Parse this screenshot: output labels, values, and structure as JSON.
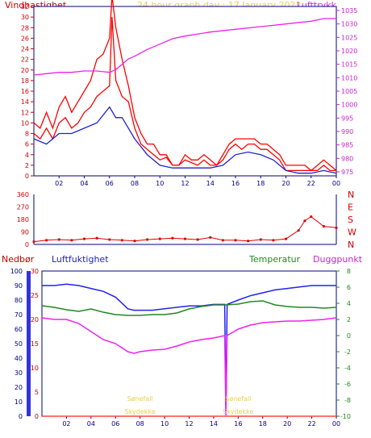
{
  "header": {
    "left_label": "Vindhastighet",
    "center_label": "24 hour graph day : 17 January 2022",
    "right_label": "Lufttrykk"
  },
  "mid_header": {
    "nedbor": "Nedbør",
    "luftfuktighet": "Luftfuktighet",
    "temperatur": "Temperatur",
    "duggpunkt": "Duggpunkt"
  },
  "chart_data": [
    {
      "type": "line",
      "panel": "wind_pressure",
      "x_ticks": [
        "02",
        "04",
        "06",
        "08",
        "10",
        "12",
        "14",
        "16",
        "18",
        "20",
        "22",
        "00"
      ],
      "x_range_hours": [
        0,
        24
      ],
      "y_left_ticks": [
        "0",
        "2",
        "4",
        "6",
        "8",
        "10",
        "12",
        "14",
        "16",
        "18",
        "20",
        "22",
        "24",
        "26",
        "28",
        "30",
        "32"
      ],
      "ylim_left": [
        0,
        32
      ],
      "y_right_ticks": [
        "975",
        "980",
        "985",
        "990",
        "995",
        "1000",
        "1005",
        "1010",
        "1015",
        "1020",
        "1025",
        "1030",
        "1035"
      ],
      "ylim_right": [
        973.5,
        1036.5
      ],
      "series": [
        {
          "name": "Vindhastighet",
          "axis": "left",
          "color": "#ff0000",
          "x": [
            0,
            0.5,
            1,
            1.5,
            2,
            2.5,
            3,
            3.5,
            4,
            4.5,
            5,
            5.5,
            6,
            6.2,
            6.5,
            7,
            7.5,
            8,
            8.5,
            9,
            9.5,
            10,
            10.5,
            11,
            11.5,
            12,
            12.5,
            13,
            13.5,
            14,
            14.5,
            15,
            15.5,
            16,
            16.5,
            17,
            17.5,
            18,
            18.5,
            19,
            19.5,
            20,
            20.5,
            21,
            21.5,
            22,
            22.5,
            23,
            23.5,
            24
          ],
          "values": [
            8,
            7,
            9,
            7,
            10,
            11,
            9,
            10,
            12,
            13,
            15,
            16,
            17,
            30,
            18,
            15,
            14,
            9,
            6,
            5,
            4,
            3,
            3.5,
            2,
            2,
            3,
            2.5,
            2,
            3,
            2,
            2,
            3,
            5,
            6,
            5,
            6,
            6,
            5,
            5,
            4,
            3,
            1,
            1,
            1,
            1,
            1,
            1,
            2,
            1,
            1
          ]
        },
        {
          "name": "Gust",
          "axis": "left",
          "color": "#ff0000",
          "x": [
            0,
            0.5,
            1,
            1.5,
            2,
            2.5,
            3,
            3.5,
            4,
            4.5,
            5,
            5.5,
            6,
            6.2,
            6.5,
            7,
            7.5,
            8,
            8.5,
            9,
            9.5,
            10,
            10.5,
            11,
            11.5,
            12,
            12.5,
            13,
            13.5,
            14,
            14.5,
            15,
            15.5,
            16,
            16.5,
            17,
            17.5,
            18,
            18.5,
            19,
            19.5,
            20,
            20.5,
            21,
            21.5,
            22,
            22.5,
            23,
            23.5,
            24
          ],
          "values": [
            10,
            9,
            12,
            9,
            13,
            15,
            12,
            14,
            16,
            18,
            22,
            23,
            26,
            34,
            28,
            22,
            17,
            11,
            8,
            6,
            6,
            4,
            4,
            2,
            2,
            4,
            3,
            3,
            4,
            3,
            2,
            4,
            6,
            7,
            7,
            7,
            7,
            6,
            6,
            5,
            4,
            2,
            2,
            2,
            2,
            1,
            2,
            3,
            2,
            1
          ]
        },
        {
          "name": "Middelvind",
          "axis": "left",
          "color": "#2020d0",
          "x": [
            0,
            1,
            2,
            3,
            4,
            5,
            6,
            6.5,
            7,
            7.5,
            8,
            9,
            10,
            11,
            12,
            13,
            14,
            15,
            16,
            17,
            18,
            19,
            20,
            21,
            22,
            23,
            24
          ],
          "values": [
            7,
            6,
            8,
            8,
            9,
            10,
            13,
            11,
            11,
            9,
            7,
            4,
            2,
            1.5,
            1.5,
            1.5,
            1.5,
            2,
            4,
            4.5,
            4,
            3,
            1,
            0.5,
            0.5,
            1,
            0.5
          ]
        },
        {
          "name": "Lufttrykk",
          "axis": "right",
          "color": "#ee22ee",
          "x": [
            0,
            1,
            2,
            3,
            4,
            5,
            6,
            6.5,
            7,
            7.5,
            8,
            9,
            10,
            11,
            12,
            14,
            16,
            18,
            20,
            22,
            23,
            24
          ],
          "values": [
            1011,
            1011.5,
            1012,
            1012,
            1012.5,
            1012.5,
            1012,
            1013,
            1015,
            1017,
            1018,
            1020.5,
            1022.5,
            1024.5,
            1025.5,
            1027,
            1028,
            1029,
            1030,
            1031,
            1032,
            1032
          ]
        }
      ]
    },
    {
      "type": "scatter",
      "panel": "wind_direction",
      "x_ticks": [
        "02",
        "04",
        "06",
        "08",
        "10",
        "12",
        "14",
        "16",
        "18",
        "20",
        "22",
        "00"
      ],
      "y_left_ticks": [
        "0",
        "90",
        "180",
        "270",
        "360"
      ],
      "y_right_ticks": [
        "N",
        "W",
        "S",
        "E",
        "N"
      ],
      "ylim": [
        0,
        360
      ],
      "series": [
        {
          "name": "Vindretning",
          "color": "#dd0000",
          "x": [
            0,
            1,
            2,
            3,
            4,
            5,
            6,
            7,
            8,
            9,
            10,
            11,
            12,
            13,
            14,
            15,
            16,
            17,
            18,
            19,
            20,
            21,
            21.5,
            22,
            23,
            24
          ],
          "values": [
            20,
            30,
            35,
            30,
            40,
            45,
            35,
            30,
            25,
            35,
            40,
            45,
            40,
            35,
            50,
            30,
            30,
            25,
            35,
            30,
            40,
            100,
            170,
            200,
            130,
            120
          ]
        }
      ]
    },
    {
      "type": "line",
      "panel": "humidity_temperature",
      "x_ticks": [
        "02",
        "04",
        "06",
        "08",
        "10",
        "12",
        "14",
        "16",
        "18",
        "20",
        "22",
        "00"
      ],
      "y_humidity_ticks": [
        "0",
        "10",
        "20",
        "30",
        "40",
        "50",
        "60",
        "70",
        "80",
        "90",
        "100"
      ],
      "ylim_humidity": [
        0,
        100
      ],
      "y_precip_ticks": [
        "0",
        "5",
        "10",
        "15",
        "20",
        "25",
        "30"
      ],
      "ylim_precip": [
        0,
        30
      ],
      "y_temp_ticks": [
        "-10",
        "-8",
        "-6",
        "-4",
        "-2",
        "0",
        "2",
        "4",
        "6",
        "8"
      ],
      "ylim_temp": [
        -10,
        8
      ],
      "series": [
        {
          "name": "Luftfuktighet",
          "axis": "humidity",
          "color": "#2222ee",
          "x": [
            0,
            1,
            2,
            3,
            4,
            5,
            6,
            6.5,
            7,
            7.5,
            8,
            9,
            10,
            11,
            12,
            13,
            14,
            14.9,
            15,
            15.1,
            16,
            17,
            18,
            19,
            20,
            21,
            22,
            23,
            24
          ],
          "values": [
            90,
            90,
            91,
            90,
            88,
            86,
            82,
            78,
            74,
            73,
            73,
            73,
            74,
            75,
            76,
            76,
            77,
            77,
            2,
            77,
            80,
            83,
            85,
            87,
            88,
            89,
            90,
            90,
            90
          ]
        },
        {
          "name": "Temperatur",
          "axis": "temp",
          "color": "#228822",
          "x": [
            0,
            1,
            2,
            3,
            4,
            5,
            6,
            7,
            8,
            9,
            10,
            11,
            12,
            13,
            14,
            15,
            16,
            17,
            18,
            19,
            20,
            21,
            22,
            23,
            24
          ],
          "values": [
            3.7,
            3.5,
            3.2,
            3.0,
            3.3,
            2.9,
            2.6,
            2.5,
            2.5,
            2.6,
            2.6,
            2.8,
            3.3,
            3.6,
            3.8,
            3.8,
            3.9,
            4.2,
            4.3,
            3.8,
            3.6,
            3.5,
            3.5,
            3.4,
            3.5
          ]
        },
        {
          "name": "Duggpunkt",
          "axis": "temp",
          "color": "#ee22ee",
          "x": [
            0,
            1,
            2,
            3,
            4,
            5,
            6,
            6.5,
            7,
            7.5,
            8,
            9,
            10,
            11,
            12,
            13,
            14,
            14.9,
            15,
            15.1,
            16,
            17,
            18,
            19,
            20,
            21,
            22,
            23,
            24
          ],
          "values": [
            2.2,
            2.0,
            2.0,
            1.5,
            0.5,
            -0.5,
            -1.0,
            -1.5,
            -2.0,
            -2.2,
            -2.0,
            -1.8,
            -1.7,
            -1.3,
            -0.8,
            -0.5,
            -0.3,
            0,
            -9.9,
            0,
            0.8,
            1.3,
            1.6,
            1.7,
            1.8,
            1.8,
            1.9,
            2.0,
            2.2
          ]
        },
        {
          "name": "Nedbør",
          "axis": "precip",
          "color": "#ff4444",
          "x": [
            0,
            24
          ],
          "values": [
            0,
            0
          ]
        }
      ],
      "annotations": [
        {
          "x": 8,
          "row": 1,
          "text": "Sønefall"
        },
        {
          "x": 8,
          "row": 2,
          "text": "Skydekke"
        },
        {
          "x": 16,
          "row": 1,
          "text": "Sønefall"
        },
        {
          "x": 16,
          "row": 2,
          "text": "Skydekke"
        }
      ]
    }
  ],
  "colors": {
    "wind": "#ff0000",
    "wind_mean": "#2020d0",
    "pressure": "#ee22ee",
    "humidity": "#2222ee",
    "temperature": "#228822",
    "dewpoint": "#ee22ee",
    "precip": "#ff4444",
    "frame": "#000080",
    "annotation": "#e8d04a"
  }
}
